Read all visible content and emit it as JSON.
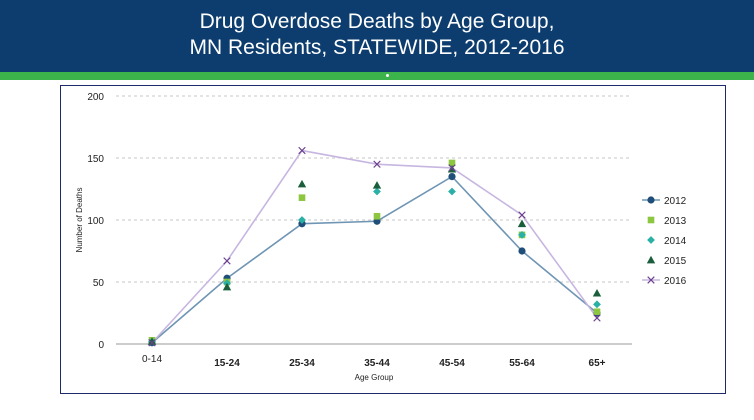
{
  "banner": {
    "title_line1": "Drug Overdose Deaths by Age Group,",
    "title_line2": "MN Residents, STATEWIDE, 2012-2016",
    "color": "#0d3d6e",
    "stripe_color": "#3cb44b"
  },
  "chart_data": {
    "type": "line",
    "title": "Drug Overdose Deaths by Age Group, MN Residents, STATEWIDE, 2012-2016",
    "xlabel": "Age Group",
    "ylabel": "Number of Deaths",
    "ylim": [
      0,
      200
    ],
    "yticks": [
      0,
      50,
      100,
      150,
      200
    ],
    "grid": true,
    "legend_position": "right",
    "categories": [
      "0-14",
      "15-24",
      "25-34",
      "35-44",
      "45-54",
      "55-64",
      "65+"
    ],
    "series": [
      {
        "name": "2012",
        "values": [
          1,
          53,
          97,
          99,
          135,
          75,
          25
        ],
        "color": "#1f4e79",
        "line_color": "#6f95b4",
        "marker": "circle",
        "line": true
      },
      {
        "name": "2013",
        "values": [
          3,
          50,
          118,
          103,
          146,
          88,
          26
        ],
        "color": "#8dc63f",
        "marker": "square",
        "line": false
      },
      {
        "name": "2014",
        "values": [
          2,
          49,
          100,
          123,
          123,
          88,
          32
        ],
        "color": "#2ab0a6",
        "marker": "diamond",
        "line": false
      },
      {
        "name": "2015",
        "values": [
          2,
          46,
          129,
          128,
          141,
          97,
          41
        ],
        "color": "#1b5e3b",
        "marker": "triangle",
        "line": false
      },
      {
        "name": "2016",
        "values": [
          1,
          67,
          156,
          145,
          142,
          104,
          21
        ],
        "color": "#6b3f8f",
        "line_color": "#c7b6e0",
        "marker": "x",
        "line": true
      }
    ]
  }
}
